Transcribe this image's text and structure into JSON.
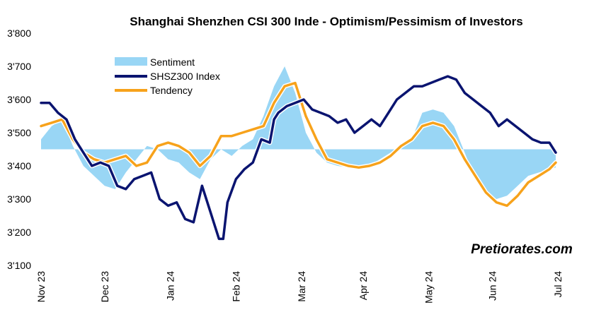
{
  "chart_data": {
    "type": "line",
    "title": "Shanghai Shenzhen CSI 300 Inde - Optimism/Pessimism of Investors",
    "watermark": "Pretiorates.com",
    "ylim": [
      3100,
      3800
    ],
    "yticks": [
      3800,
      3700,
      3600,
      3500,
      3400,
      3300,
      3200,
      3100
    ],
    "ytick_labels": [
      "3'800",
      "3'700",
      "3'600",
      "3'500",
      "3'400",
      "3'300",
      "3'200",
      "3'100"
    ],
    "xlim": [
      0,
      248
    ],
    "xticks": [
      0,
      30,
      61,
      92,
      123,
      152,
      183,
      213,
      244
    ],
    "xtick_labels": [
      "Nov 23",
      "Dec 23",
      "Jan 24",
      "Feb 24",
      "Mar 24",
      "Apr 24",
      "May 24",
      "Jun 24",
      "Jul 24"
    ],
    "sentiment_baseline": 3450,
    "legend": {
      "position": "top-left",
      "entries": [
        "Sentiment",
        "SHSZ300 Index",
        "Tendency"
      ]
    },
    "colors": {
      "sentiment": "#99d6f5",
      "index": "#0a1470",
      "tendency": "#f7a21b"
    },
    "series": [
      {
        "name": "Sentiment",
        "x": [
          0,
          5,
          10,
          15,
          20,
          25,
          30,
          35,
          40,
          45,
          50,
          55,
          60,
          65,
          70,
          75,
          80,
          85,
          90,
          95,
          100,
          105,
          110,
          115,
          120,
          125,
          130,
          135,
          140,
          145,
          150,
          155,
          160,
          165,
          170,
          175,
          180,
          185,
          190,
          195,
          200,
          205,
          210,
          215,
          220,
          225,
          230,
          235,
          240,
          243
        ],
        "values": [
          3480,
          3520,
          3540,
          3460,
          3400,
          3370,
          3340,
          3330,
          3380,
          3420,
          3460,
          3450,
          3420,
          3410,
          3380,
          3360,
          3420,
          3450,
          3430,
          3460,
          3480,
          3550,
          3640,
          3700,
          3620,
          3500,
          3440,
          3410,
          3400,
          3395,
          3390,
          3400,
          3420,
          3440,
          3460,
          3480,
          3560,
          3570,
          3560,
          3520,
          3440,
          3360,
          3320,
          3300,
          3310,
          3340,
          3370,
          3380,
          3390,
          3395
        ]
      },
      {
        "name": "SHSZ300 Index",
        "x": [
          0,
          4,
          8,
          12,
          16,
          20,
          24,
          28,
          32,
          36,
          40,
          44,
          48,
          52,
          56,
          60,
          64,
          68,
          72,
          76,
          80,
          84,
          86,
          88,
          92,
          96,
          100,
          104,
          108,
          110,
          112,
          116,
          120,
          124,
          128,
          132,
          136,
          140,
          144,
          148,
          152,
          156,
          160,
          164,
          168,
          172,
          176,
          180,
          184,
          188,
          192,
          196,
          200,
          204,
          208,
          212,
          216,
          220,
          224,
          228,
          232,
          236,
          240,
          243
        ],
        "values": [
          3590,
          3590,
          3560,
          3540,
          3480,
          3440,
          3400,
          3410,
          3400,
          3340,
          3330,
          3360,
          3370,
          3380,
          3300,
          3280,
          3290,
          3240,
          3230,
          3340,
          3260,
          3180,
          3180,
          3290,
          3360,
          3390,
          3410,
          3480,
          3470,
          3540,
          3560,
          3580,
          3590,
          3600,
          3570,
          3560,
          3550,
          3530,
          3540,
          3500,
          3520,
          3540,
          3520,
          3560,
          3600,
          3620,
          3640,
          3640,
          3650,
          3660,
          3670,
          3660,
          3620,
          3600,
          3580,
          3560,
          3520,
          3540,
          3520,
          3500,
          3480,
          3470,
          3470,
          3440
        ]
      },
      {
        "name": "Tendency",
        "x": [
          0,
          5,
          10,
          15,
          20,
          25,
          30,
          35,
          40,
          45,
          50,
          55,
          60,
          65,
          70,
          75,
          80,
          85,
          90,
          95,
          100,
          105,
          110,
          115,
          120,
          125,
          130,
          135,
          140,
          145,
          150,
          155,
          160,
          165,
          170,
          175,
          180,
          185,
          190,
          195,
          200,
          205,
          210,
          215,
          220,
          225,
          230,
          235,
          240,
          243
        ],
        "values": [
          3520,
          3530,
          3540,
          3480,
          3440,
          3420,
          3410,
          3420,
          3430,
          3400,
          3410,
          3460,
          3470,
          3460,
          3440,
          3400,
          3430,
          3490,
          3490,
          3500,
          3510,
          3520,
          3590,
          3640,
          3650,
          3550,
          3480,
          3420,
          3410,
          3400,
          3395,
          3400,
          3410,
          3430,
          3460,
          3480,
          3520,
          3530,
          3520,
          3480,
          3420,
          3370,
          3320,
          3290,
          3280,
          3310,
          3350,
          3370,
          3390,
          3410
        ]
      }
    ]
  }
}
